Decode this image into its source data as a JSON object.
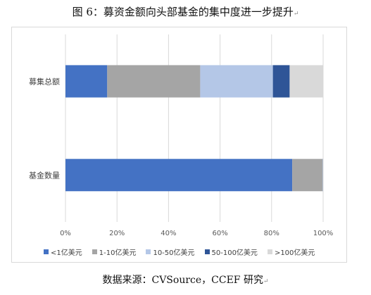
{
  "title": "图 6：募资金额向头部基金的集中度进一步提升",
  "source": "数据来源：CVSource，CCEF 研究",
  "chart_data": {
    "type": "bar",
    "orientation": "horizontal",
    "stacked": true,
    "percent": true,
    "categories": [
      "募集总额",
      "基金数量"
    ],
    "series": [
      {
        "name": "<1亿美元",
        "color": "#4472c4",
        "values": [
          16.2,
          88.0
        ]
      },
      {
        "name": "1-10亿美元",
        "color": "#a5a5a5",
        "values": [
          36.1,
          11.8
        ]
      },
      {
        "name": "10-50亿美元",
        "color": "#b4c7e7",
        "values": [
          28.2,
          0.1
        ]
      },
      {
        "name": "50-100亿美元",
        "color": "#2f5597",
        "values": [
          6.5,
          0.05
        ]
      },
      {
        "name": ">100亿美元",
        "color": "#d9d9d9",
        "values": [
          13.0,
          0.05
        ]
      }
    ],
    "xlim": [
      0,
      100
    ],
    "xticks": [
      "0%",
      "20%",
      "40%",
      "60%",
      "80%",
      "100%"
    ],
    "grid": true,
    "legend": "bottom"
  }
}
